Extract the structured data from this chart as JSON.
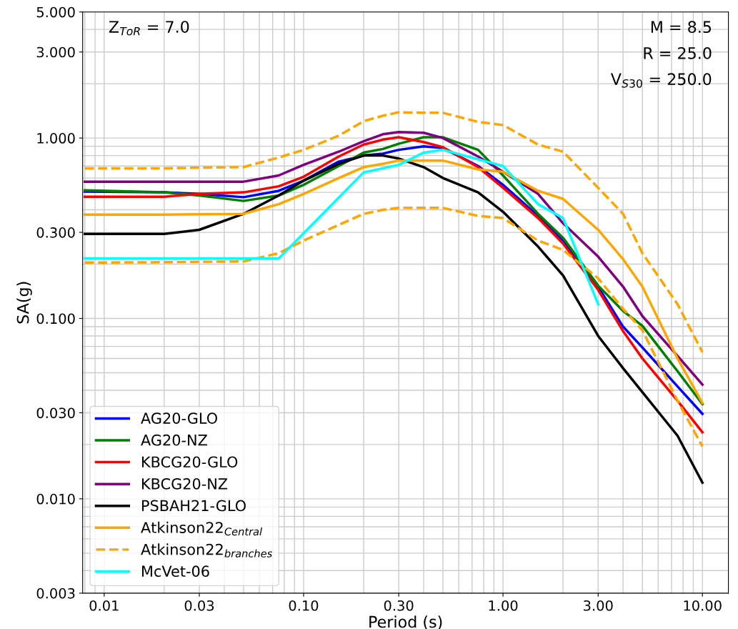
{
  "chart_data": {
    "type": "line",
    "xlabel": "Period (s)",
    "ylabel": "SA(g)",
    "log": "xy",
    "grid": true,
    "legend": "bottom left",
    "line_style": "solid",
    "marker": "none",
    "x": [
      0.008,
      0.02,
      0.03,
      0.05,
      0.075,
      0.1,
      0.15,
      0.2,
      0.25,
      0.3,
      0.4,
      0.5,
      0.75,
      1,
      1.5,
      2,
      3,
      4,
      5,
      7.5,
      10
    ],
    "xlim": [
      0.0078,
      13.5
    ],
    "ylim": [
      0.003,
      5.0
    ],
    "xticks": [
      {
        "value": 0.01,
        "label": "0.01"
      },
      {
        "value": 0.03,
        "label": "0.03"
      },
      {
        "value": 0.1,
        "label": "0.10"
      },
      {
        "value": 0.3,
        "label": "0.30"
      },
      {
        "value": 1,
        "label": "1.00"
      },
      {
        "value": 3,
        "label": "3.00"
      },
      {
        "value": 10,
        "label": "10.00"
      }
    ],
    "yticks": [
      {
        "value": 0.003,
        "label": "0.003"
      },
      {
        "value": 0.01,
        "label": "0.010"
      },
      {
        "value": 0.03,
        "label": "0.030"
      },
      {
        "value": 0.1,
        "label": "0.100"
      },
      {
        "value": 0.3,
        "label": "0.300"
      },
      {
        "value": 1,
        "label": "1.000"
      },
      {
        "value": 3,
        "label": "3.000"
      },
      {
        "value": 5,
        "label": "5.000"
      }
    ],
    "annotations": [
      "Z$_{ToR}$ = 7.0",
      "M = 8.5",
      "R = 25.0",
      "V$_{S30}$ = 250.0"
    ],
    "series": [
      {
        "name": "AG20-GLO",
        "color": "#0000ff",
        "values": [
          0.505,
          0.5,
          0.49,
          0.47,
          0.51,
          0.58,
          0.74,
          0.8,
          0.82,
          0.86,
          0.9,
          0.88,
          0.7,
          0.55,
          0.37,
          0.27,
          0.15,
          0.09,
          0.069,
          0.042,
          0.0296
        ]
      },
      {
        "name": "AG20-NZ",
        "color": "#008000",
        "values": [
          0.513,
          0.5,
          0.48,
          0.448,
          0.48,
          0.55,
          0.7,
          0.83,
          0.87,
          0.93,
          1.01,
          1.01,
          0.86,
          0.62,
          0.38,
          0.28,
          0.152,
          0.11,
          0.091,
          0.051,
          0.0335
        ]
      },
      {
        "name": "KBCG20-GLO",
        "color": "#ff0000",
        "values": [
          0.473,
          0.473,
          0.49,
          0.5,
          0.54,
          0.61,
          0.79,
          0.92,
          0.98,
          1.01,
          0.95,
          0.89,
          0.69,
          0.53,
          0.36,
          0.26,
          0.144,
          0.085,
          0.06,
          0.035,
          0.0234
        ]
      },
      {
        "name": "KBCG20-NZ",
        "color": "#800080",
        "values": [
          0.573,
          0.573,
          0.573,
          0.573,
          0.62,
          0.71,
          0.84,
          0.96,
          1.05,
          1.08,
          1.07,
          1.0,
          0.79,
          0.65,
          0.49,
          0.337,
          0.22,
          0.15,
          0.103,
          0.062,
          0.043
        ]
      },
      {
        "name": "PSBAH21-GLO",
        "color": "#000000",
        "values": [
          0.294,
          0.294,
          0.31,
          0.38,
          0.48,
          0.58,
          0.72,
          0.8,
          0.8,
          0.77,
          0.69,
          0.6,
          0.5,
          0.39,
          0.25,
          0.173,
          0.08,
          0.053,
          0.039,
          0.0224,
          0.0123
        ]
      },
      {
        "name": "Atkinson22$_{Central}$",
        "color": "#ffa500",
        "values": [
          0.376,
          0.376,
          0.378,
          0.38,
          0.43,
          0.49,
          0.6,
          0.69,
          0.72,
          0.75,
          0.75,
          0.75,
          0.67,
          0.65,
          0.51,
          0.46,
          0.31,
          0.213,
          0.15,
          0.06,
          0.034
        ]
      },
      {
        "name": "Atkinson22$_{branches}$",
        "color": "#ffa500",
        "line_style": "dashed",
        "values": [
          0.68,
          0.68,
          0.685,
          0.69,
          0.78,
          0.86,
          1.03,
          1.24,
          1.33,
          1.39,
          1.38,
          1.38,
          1.23,
          1.18,
          0.92,
          0.84,
          0.53,
          0.38,
          0.23,
          0.12,
          0.065
        ]
      },
      {
        "color": "#ffa500",
        "line_style": "dashed",
        "values": [
          0.204,
          0.205,
          0.206,
          0.207,
          0.23,
          0.27,
          0.33,
          0.38,
          0.4,
          0.41,
          0.41,
          0.41,
          0.37,
          0.36,
          0.27,
          0.24,
          0.167,
          0.113,
          0.086,
          0.035,
          0.0195
        ]
      },
      {
        "name": "McVet-06",
        "color": "#00ffff",
        "x": [
          0.008,
          0.075,
          0.2,
          0.3,
          0.4,
          0.5,
          1,
          1.5,
          2,
          3
        ],
        "values": [
          0.215,
          0.215,
          0.645,
          0.71,
          0.83,
          0.86,
          0.7,
          0.43,
          0.36,
          0.12
        ]
      }
    ]
  }
}
